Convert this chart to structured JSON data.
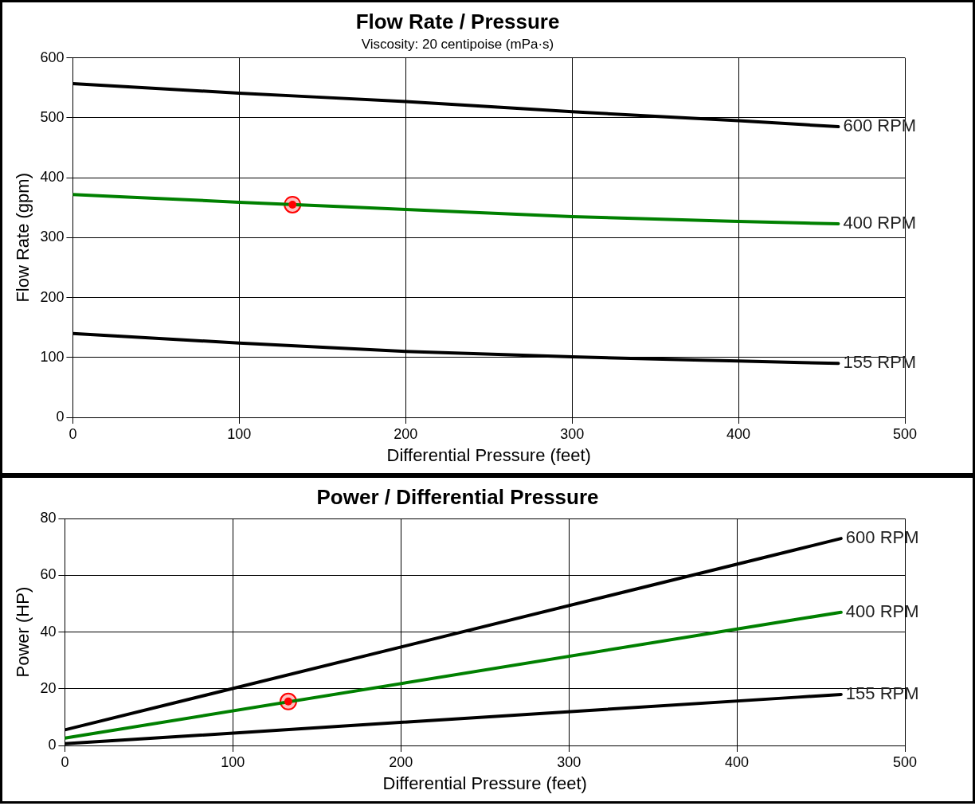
{
  "chart_data": [
    {
      "type": "line",
      "title": "Flow Rate / Pressure",
      "subtitle": "Viscosity: 20 centipoise (mPa·s)",
      "xlabel": "Differential Pressure (feet)",
      "ylabel": "Flow Rate (gpm)",
      "xlim": [
        0,
        500
      ],
      "xticks": [
        0,
        100,
        200,
        300,
        400,
        500
      ],
      "ylim": [
        0,
        600
      ],
      "yticks": [
        0,
        100,
        200,
        300,
        400,
        500,
        600
      ],
      "grid": true,
      "legend": false,
      "marker": "none",
      "line_style": "solid",
      "series": [
        {
          "name": "600 RPM",
          "color": "#000000",
          "x": [
            0,
            100,
            200,
            300,
            400,
            460
          ],
          "values": [
            557,
            541,
            527,
            510,
            495,
            485
          ]
        },
        {
          "name": "400 RPM",
          "color": "#008000",
          "x": [
            0,
            100,
            200,
            300,
            400,
            460
          ],
          "values": [
            372,
            359,
            347,
            335,
            327,
            323
          ]
        },
        {
          "name": "155 RPM",
          "color": "#000000",
          "x": [
            0,
            100,
            200,
            300,
            400,
            460
          ],
          "values": [
            140,
            124,
            110,
            101,
            94,
            90
          ]
        },
        {
          "type": "scatter",
          "marker": "circle",
          "color": "#ff0000",
          "x": [
            132
          ],
          "values": [
            355
          ]
        }
      ]
    },
    {
      "type": "line",
      "title": "Power / Differential Pressure",
      "xlabel": "Differential Pressure (feet)",
      "ylabel": "Power (HP)",
      "xlim": [
        0,
        500
      ],
      "xticks": [
        0,
        100,
        200,
        300,
        400,
        500
      ],
      "ylim": [
        0,
        80
      ],
      "yticks": [
        0,
        20,
        40,
        60,
        80
      ],
      "grid": true,
      "legend": false,
      "marker": "none",
      "line_style": "solid",
      "series": [
        {
          "name": "600 RPM",
          "color": "#000000",
          "x": [
            0,
            462
          ],
          "values": [
            5.5,
            73
          ]
        },
        {
          "name": "400 RPM",
          "color": "#008000",
          "x": [
            0,
            462
          ],
          "values": [
            2.6,
            47
          ]
        },
        {
          "name": "155 RPM",
          "color": "#000000",
          "x": [
            0,
            462
          ],
          "values": [
            0.6,
            18
          ]
        },
        {
          "type": "scatter",
          "marker": "circle",
          "color": "#ff0000",
          "x": [
            133
          ],
          "values": [
            15.5
          ]
        }
      ]
    }
  ]
}
